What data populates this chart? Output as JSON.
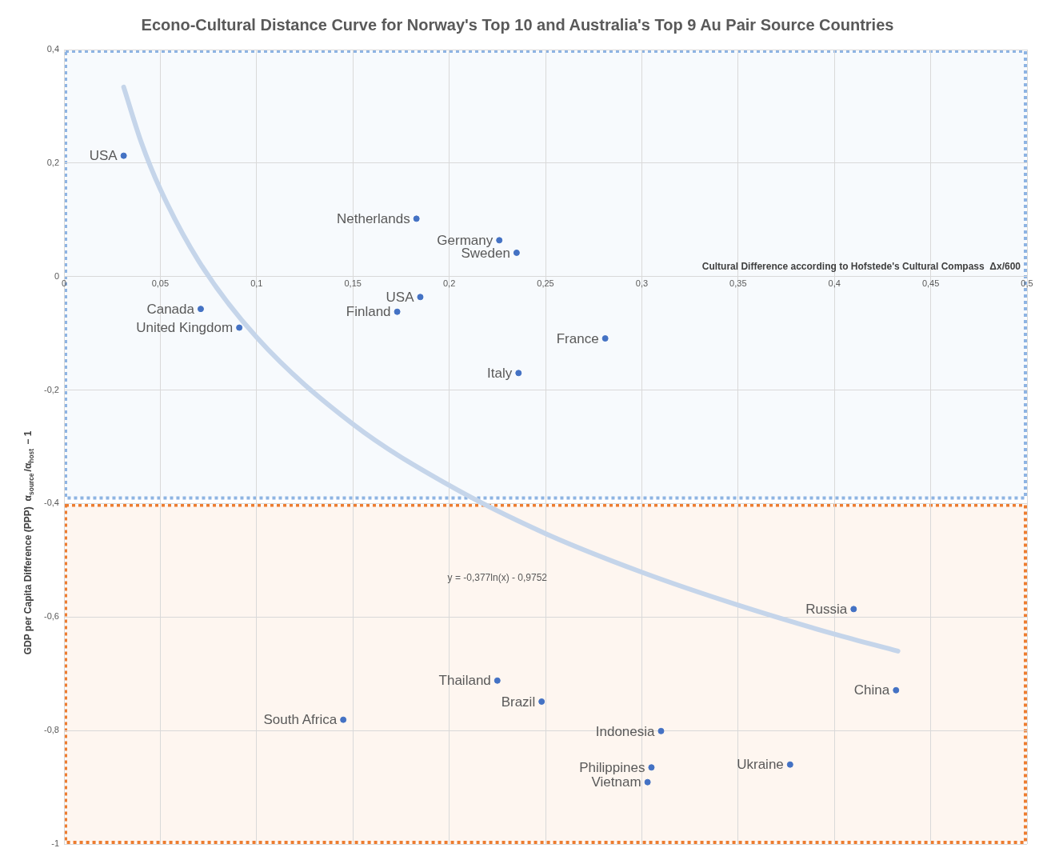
{
  "chart_data": {
    "type": "scatter",
    "title": "Econo-Cultural Distance Curve for Norway's Top 10 and Australia's Top 9 Au Pair Source Countries",
    "xlabel": "Cultural Difference according to Hofstede's Cultural Compass  Δx/600",
    "ylabel": "GDP per Capita Difference (PPP)  α$_{source}$/α$_{host}$ − 1",
    "series": [
      {
        "color": "#4472c4",
        "marker": "circle",
        "x": [
          0.031,
          0.183,
          0.226,
          0.235,
          0.185,
          0.173,
          0.071,
          0.091,
          0.281,
          0.236,
          0.41,
          0.432,
          0.225,
          0.248,
          0.145,
          0.31,
          0.377,
          0.305,
          0.303
        ],
        "values": [
          0.213,
          0.102,
          0.064,
          0.042,
          -0.036,
          -0.062,
          -0.057,
          -0.09,
          -0.109,
          -0.17,
          -0.586,
          -0.729,
          -0.712,
          -0.749,
          -0.781,
          -0.801,
          -0.86,
          -0.865,
          -0.891
        ]
      },
      {
        "type": "line",
        "color": "#c5d5ea",
        "x": [
          0.031,
          0.04,
          0.05,
          0.07,
          0.1,
          0.15,
          0.2,
          0.25,
          0.3,
          0.35,
          0.4,
          0.433
        ],
        "values": [
          0.334,
          0.238,
          0.154,
          0.027,
          -0.107,
          -0.26,
          -0.368,
          -0.453,
          -0.521,
          -0.579,
          -0.63,
          -0.66
        ]
      }
    ],
    "annotations": [
      {
        "text": "USA",
        "x": 0.031,
        "y": 0.213
      },
      {
        "text": "Netherlands",
        "x": 0.183,
        "y": 0.102
      },
      {
        "text": "Germany",
        "x": 0.226,
        "y": 0.064
      },
      {
        "text": "Sweden",
        "x": 0.235,
        "y": 0.042
      },
      {
        "text": "USA",
        "x": 0.185,
        "y": -0.036
      },
      {
        "text": "Finland",
        "x": 0.173,
        "y": -0.062
      },
      {
        "text": "Canada",
        "x": 0.071,
        "y": -0.057
      },
      {
        "text": "United Kingdom",
        "x": 0.091,
        "y": -0.09
      },
      {
        "text": "France",
        "x": 0.281,
        "y": -0.109
      },
      {
        "text": "Italy",
        "x": 0.236,
        "y": -0.17
      },
      {
        "text": "Russia",
        "x": 0.41,
        "y": -0.586
      },
      {
        "text": "China",
        "x": 0.432,
        "y": -0.729
      },
      {
        "text": "Thailand",
        "x": 0.225,
        "y": -0.712
      },
      {
        "text": "Brazil",
        "x": 0.248,
        "y": -0.749
      },
      {
        "text": "South Africa",
        "x": 0.145,
        "y": -0.781
      },
      {
        "text": "Indonesia",
        "x": 0.31,
        "y": -0.801
      },
      {
        "text": "Ukraine",
        "x": 0.377,
        "y": -0.86
      },
      {
        "text": "Philippines",
        "x": 0.305,
        "y": -0.865
      },
      {
        "text": "Vietnam",
        "x": 0.303,
        "y": -0.891
      },
      "y = -0,377ln(x) - 0,9752"
    ],
    "bands": [
      {
        "axis": "y",
        "from": -0.393,
        "to": 0.4,
        "color": "#8eb4e3"
      },
      {
        "axis": "y",
        "from": -1,
        "to": -0.4,
        "color": "#ed7d31"
      }
    ],
    "xlim": [
      0,
      0.5
    ],
    "xticks": [
      0,
      {
        "value": 0.05,
        "label": "0,05"
      },
      {
        "value": 0.1,
        "label": "0,1"
      },
      {
        "value": 0.15,
        "label": "0,15"
      },
      {
        "value": 0.2,
        "label": "0,2"
      },
      {
        "value": 0.25,
        "label": "0,25"
      },
      {
        "value": 0.3,
        "label": "0,3"
      },
      {
        "value": 0.35,
        "label": "0,35"
      },
      {
        "value": 0.4,
        "label": "0,4"
      },
      {
        "value": 0.45,
        "label": "0,45"
      },
      {
        "value": 0.5,
        "label": "0,5"
      }
    ],
    "ylim": [
      -1,
      0.4
    ],
    "yticks": [
      {
        "value": -1,
        "label": "-1"
      },
      {
        "value": -0.8,
        "label": "-0,8"
      },
      {
        "value": -0.6,
        "label": "-0,6"
      },
      {
        "value": -0.4,
        "label": "-0,4"
      },
      {
        "value": -0.2,
        "label": "-0,2"
      },
      0,
      {
        "value": 0.2,
        "label": "0,2"
      },
      {
        "value": 0.4,
        "label": "0,4"
      }
    ],
    "grid": true,
    "legend": false
  }
}
